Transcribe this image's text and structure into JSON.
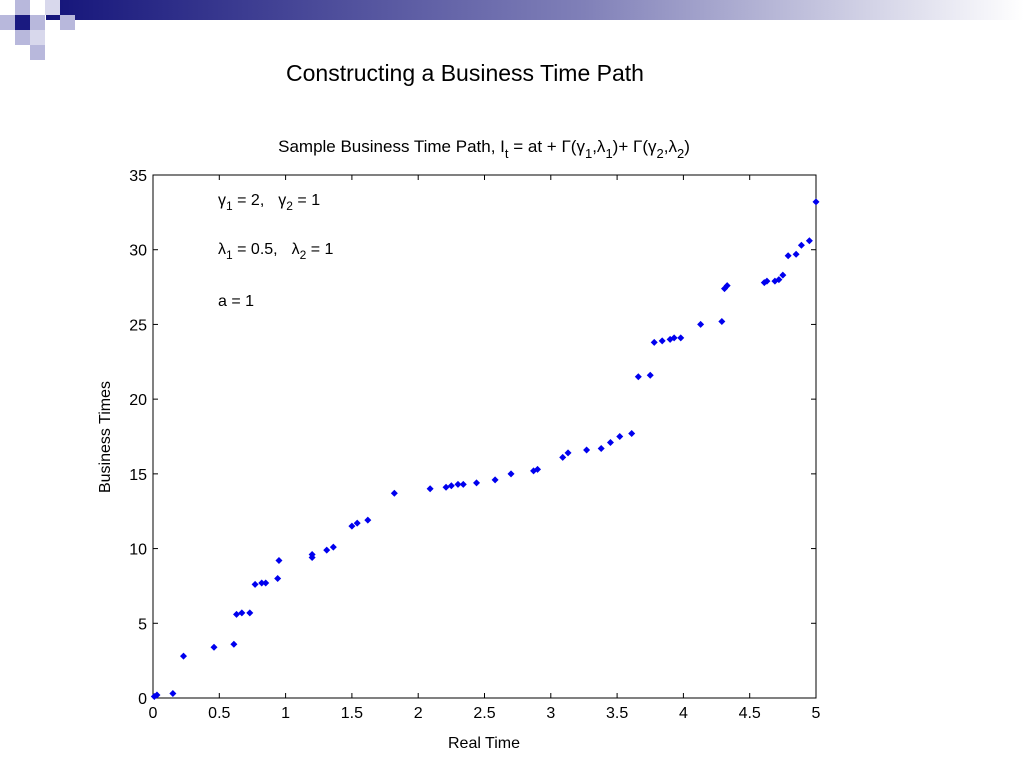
{
  "slide": {
    "title": "Constructing a Business Time Path",
    "colors": {
      "bar": "#0a0a78",
      "sq_dark": "#1a1a80",
      "sq_light": "#b0b0d8"
    }
  },
  "chart_data": {
    "type": "scatter",
    "title": "Sample Business Time Path, I",
    "title_sub": "t",
    "title_rest": " = at + Γ(γ",
    "title_sub2": "1",
    "title_comma1": ",λ",
    "title_sub3": "1",
    "title_plus": ")+ Γ(γ",
    "title_sub4": "2",
    "title_comma2": ",λ",
    "title_sub5": "2",
    "title_close": ")",
    "xlabel": "Real Time",
    "ylabel": "Business Times",
    "xlim": [
      0,
      5
    ],
    "ylim": [
      0,
      35
    ],
    "xticks": [
      "0",
      "0.5",
      "1",
      "1.5",
      "2",
      "2.5",
      "3",
      "3.5",
      "4",
      "4.5",
      "5"
    ],
    "yticks": [
      "0",
      "5",
      "10",
      "15",
      "20",
      "25",
      "30",
      "35"
    ],
    "grid": false,
    "marker_color": "#0000ee",
    "annotations": {
      "gamma1_sym": "γ",
      "gamma1_sub": "1",
      "gamma1_val": " = 2,",
      "gamma2_sym": "γ",
      "gamma2_sub": "2",
      "gamma2_val": " = 1",
      "lambda1_sym": "λ",
      "lambda1_sub": "1",
      "lambda1_val": " = 0.5,",
      "lambda2_sym": "λ",
      "lambda2_sub": "2",
      "lambda2_val": " = 1",
      "a_line": "a = 1"
    },
    "points": [
      [
        0.01,
        0.1
      ],
      [
        0.03,
        0.2
      ],
      [
        0.15,
        0.3
      ],
      [
        0.23,
        2.8
      ],
      [
        0.46,
        3.4
      ],
      [
        0.61,
        3.6
      ],
      [
        0.63,
        5.6
      ],
      [
        0.67,
        5.7
      ],
      [
        0.73,
        5.7
      ],
      [
        0.77,
        7.6
      ],
      [
        0.82,
        7.7
      ],
      [
        0.85,
        7.7
      ],
      [
        0.94,
        8.0
      ],
      [
        0.95,
        9.2
      ],
      [
        1.2,
        9.4
      ],
      [
        1.2,
        9.6
      ],
      [
        1.31,
        9.9
      ],
      [
        1.36,
        10.1
      ],
      [
        1.5,
        11.5
      ],
      [
        1.54,
        11.7
      ],
      [
        1.62,
        11.9
      ],
      [
        1.82,
        13.7
      ],
      [
        2.09,
        14.0
      ],
      [
        2.21,
        14.1
      ],
      [
        2.25,
        14.2
      ],
      [
        2.3,
        14.3
      ],
      [
        2.34,
        14.3
      ],
      [
        2.44,
        14.4
      ],
      [
        2.58,
        14.6
      ],
      [
        2.7,
        15.0
      ],
      [
        2.87,
        15.2
      ],
      [
        2.9,
        15.3
      ],
      [
        3.09,
        16.1
      ],
      [
        3.13,
        16.4
      ],
      [
        3.27,
        16.6
      ],
      [
        3.38,
        16.7
      ],
      [
        3.45,
        17.1
      ],
      [
        3.52,
        17.5
      ],
      [
        3.61,
        17.7
      ],
      [
        3.66,
        21.5
      ],
      [
        3.75,
        21.6
      ],
      [
        3.78,
        23.8
      ],
      [
        3.84,
        23.9
      ],
      [
        3.9,
        24.0
      ],
      [
        3.93,
        24.1
      ],
      [
        3.98,
        24.1
      ],
      [
        4.13,
        25.0
      ],
      [
        4.29,
        25.2
      ],
      [
        4.31,
        27.4
      ],
      [
        4.33,
        27.6
      ],
      [
        4.61,
        27.8
      ],
      [
        4.63,
        27.9
      ],
      [
        4.69,
        27.9
      ],
      [
        4.72,
        28.0
      ],
      [
        4.75,
        28.3
      ],
      [
        4.79,
        29.6
      ],
      [
        4.85,
        29.7
      ],
      [
        4.89,
        30.3
      ],
      [
        4.95,
        30.6
      ],
      [
        5.0,
        33.2
      ]
    ]
  }
}
